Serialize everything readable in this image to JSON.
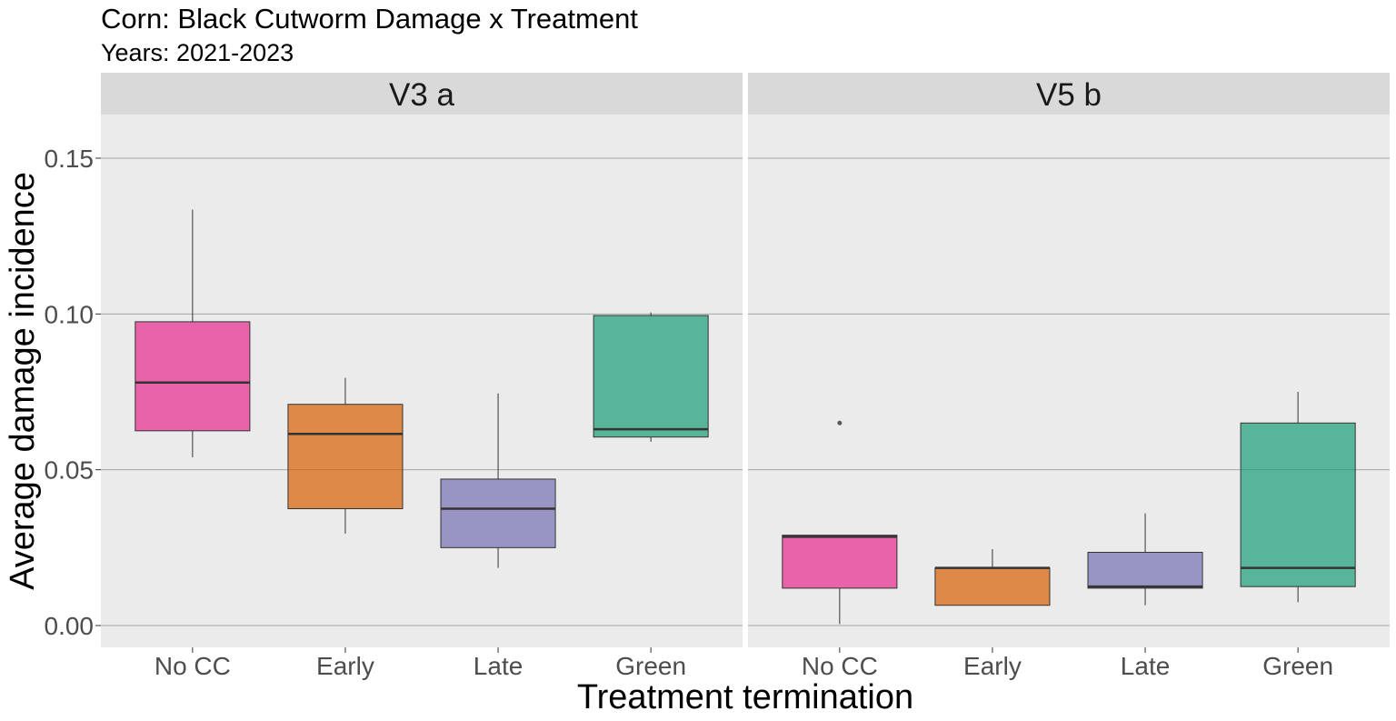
{
  "chart_data": {
    "type": "boxplot",
    "title": "Corn: Black Cutworm Damage x Treatment",
    "subtitle": "Years: 2021-2023",
    "xlabel": "Treatment termination",
    "ylabel": "Average damage incidence",
    "ylim": [
      -0.007,
      0.164
    ],
    "yticks": [
      "0.00",
      "0.05",
      "0.10",
      "0.15"
    ],
    "grid": true,
    "categories": [
      "No CC",
      "Early",
      "Late",
      "Green"
    ],
    "colors": {
      "No CC": "#e7298a",
      "Early": "#d95f02",
      "Late": "#7570b3",
      "Green": "#1b9e77"
    },
    "panels": [
      {
        "strip": "V3  a",
        "boxes": [
          {
            "category": "No CC",
            "whisker_low": 0.054,
            "q1": 0.0625,
            "median": 0.078,
            "q3": 0.0975,
            "whisker_high": 0.1335,
            "outliers": []
          },
          {
            "category": "Early",
            "whisker_low": 0.0295,
            "q1": 0.0375,
            "median": 0.0615,
            "q3": 0.071,
            "whisker_high": 0.0795,
            "outliers": []
          },
          {
            "category": "Late",
            "whisker_low": 0.0185,
            "q1": 0.025,
            "median": 0.0375,
            "q3": 0.047,
            "whisker_high": 0.0745,
            "outliers": []
          },
          {
            "category": "Green",
            "whisker_low": 0.059,
            "q1": 0.0605,
            "median": 0.063,
            "q3": 0.0995,
            "whisker_high": 0.1005,
            "outliers": []
          }
        ]
      },
      {
        "strip": "V5  b",
        "boxes": [
          {
            "category": "No CC",
            "whisker_low": 0.0005,
            "q1": 0.012,
            "median": 0.0285,
            "q3": 0.029,
            "whisker_high": 0.029,
            "outliers": [
              0.065
            ]
          },
          {
            "category": "Early",
            "whisker_low": 0.0065,
            "q1": 0.0065,
            "median": 0.0185,
            "q3": 0.0185,
            "whisker_high": 0.0245,
            "outliers": []
          },
          {
            "category": "Late",
            "whisker_low": 0.0065,
            "q1": 0.012,
            "median": 0.0125,
            "q3": 0.0235,
            "whisker_high": 0.036,
            "outliers": []
          },
          {
            "category": "Green",
            "whisker_low": 0.0075,
            "q1": 0.0125,
            "median": 0.0185,
            "q3": 0.065,
            "whisker_high": 0.075,
            "outliers": []
          }
        ]
      }
    ]
  }
}
